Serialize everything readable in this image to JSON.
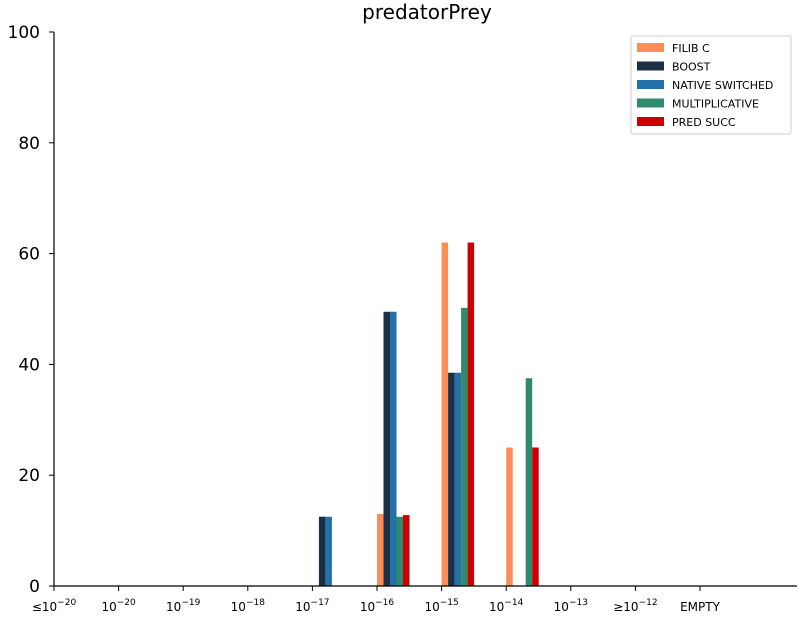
{
  "chart_data": {
    "type": "bar",
    "title": "predatorPrey",
    "xlabel": "",
    "ylabel": "",
    "ylim": [
      0,
      100
    ],
    "yticks": [
      "0",
      "20",
      "40",
      "60",
      "80",
      "100"
    ],
    "categories": [
      {
        "prefix": "≤",
        "base": "10",
        "exp": "−20"
      },
      {
        "prefix": "",
        "base": "10",
        "exp": "−20"
      },
      {
        "prefix": "",
        "base": "10",
        "exp": "−19"
      },
      {
        "prefix": "",
        "base": "10",
        "exp": "−18"
      },
      {
        "prefix": "",
        "base": "10",
        "exp": "−17"
      },
      {
        "prefix": "",
        "base": "10",
        "exp": "−16"
      },
      {
        "prefix": "",
        "base": "10",
        "exp": "−15"
      },
      {
        "prefix": "",
        "base": "10",
        "exp": "−14"
      },
      {
        "prefix": "",
        "base": "10",
        "exp": "−13"
      },
      {
        "prefix": "≥",
        "base": "10",
        "exp": "−12"
      },
      {
        "prefix": "",
        "base": "EMPTY",
        "exp": ""
      }
    ],
    "series": [
      {
        "name": "FILIB C",
        "color": "#fc8d59",
        "values": [
          0,
          0,
          0,
          0,
          0,
          13,
          62,
          25,
          0,
          0,
          0
        ]
      },
      {
        "name": "BOOST",
        "color": "#1b2f45",
        "values": [
          0,
          0,
          0,
          0,
          12.5,
          49.5,
          38.5,
          0,
          0,
          0,
          0
        ]
      },
      {
        "name": "NATIVE SWITCHED",
        "color": "#2470a8",
        "values": [
          0,
          0,
          0,
          0,
          12.5,
          49.5,
          38.5,
          0,
          0,
          0,
          0
        ]
      },
      {
        "name": "MULTIPLICATIVE",
        "color": "#2e8b6e",
        "values": [
          0,
          0,
          0,
          0,
          0,
          12.5,
          50.2,
          37.5,
          0,
          0,
          0
        ]
      },
      {
        "name": "PRED SUCC",
        "color": "#cc0000",
        "values": [
          0,
          0,
          0,
          0,
          0,
          12.8,
          62,
          25,
          0,
          0,
          0
        ]
      }
    ],
    "legend": "top-right",
    "grid": false
  }
}
